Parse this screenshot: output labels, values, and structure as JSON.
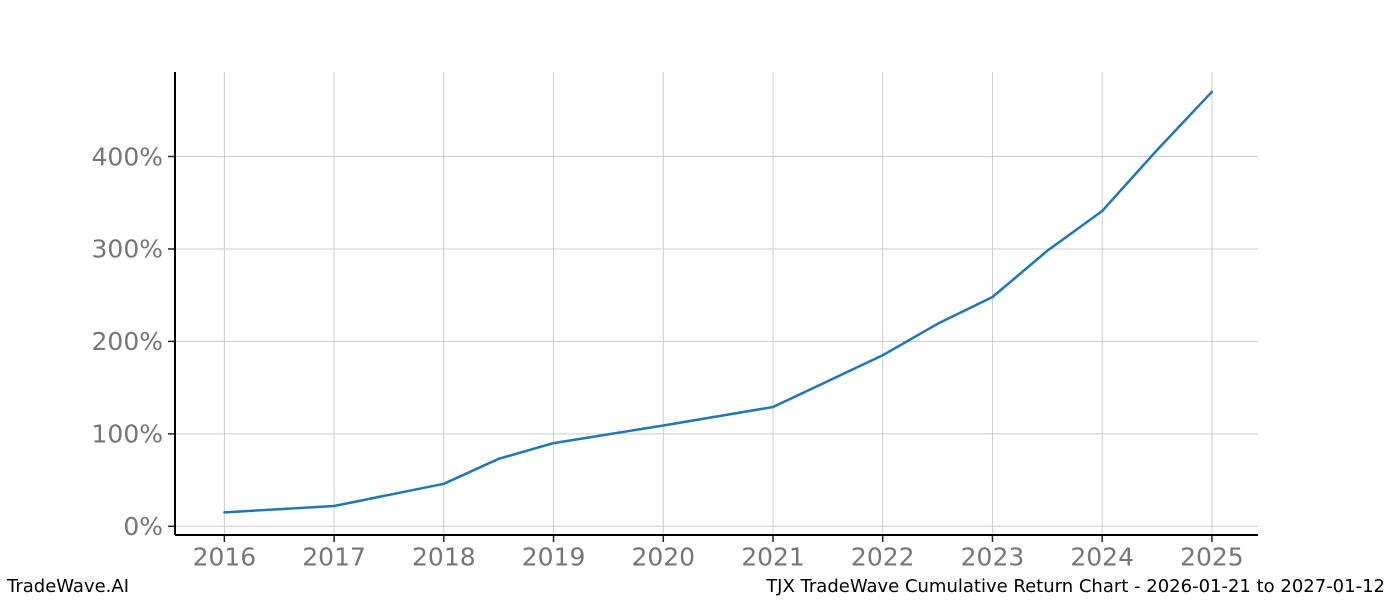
{
  "figure": {
    "background": "#ffffff"
  },
  "footer": {
    "left": "TradeWave.AI",
    "right": "TJX TradeWave Cumulative Return Chart - 2026-01-21 to 2027-01-12"
  },
  "chart_data": {
    "type": "line",
    "title": "",
    "xlabel": "",
    "ylabel": "",
    "series": [
      {
        "name": "TJX cumulative return",
        "x": [
          2016,
          2017,
          2018,
          2018.5,
          2019,
          2020,
          2021,
          2022,
          2022.5,
          2023,
          2023.5,
          2024,
          2024.5,
          2025
        ],
        "y": [
          15,
          22,
          46,
          73,
          90,
          109,
          129,
          185,
          219,
          248,
          298,
          341,
          407,
          470
        ],
        "color": "#1f77b4",
        "line_width": 2.5
      }
    ],
    "xticks": [
      2016,
      2017,
      2018,
      2019,
      2020,
      2021,
      2022,
      2023,
      2024,
      2025
    ],
    "xtick_labels": [
      "2016",
      "2017",
      "2018",
      "2019",
      "2020",
      "2021",
      "2022",
      "2023",
      "2024",
      "2025"
    ],
    "yticks": [
      0,
      100,
      200,
      300,
      400
    ],
    "ytick_labels": [
      "0%",
      "100%",
      "200%",
      "300%",
      "400%"
    ],
    "xlim": [
      2015.55,
      2025.42
    ],
    "ylim": [
      -9.4,
      491.4
    ],
    "grid": true,
    "legend_position": "none",
    "colors": {
      "grid": "#cccccc",
      "spine": "#000000",
      "tick_mark": "#262626",
      "tick_label": "#767676"
    }
  }
}
